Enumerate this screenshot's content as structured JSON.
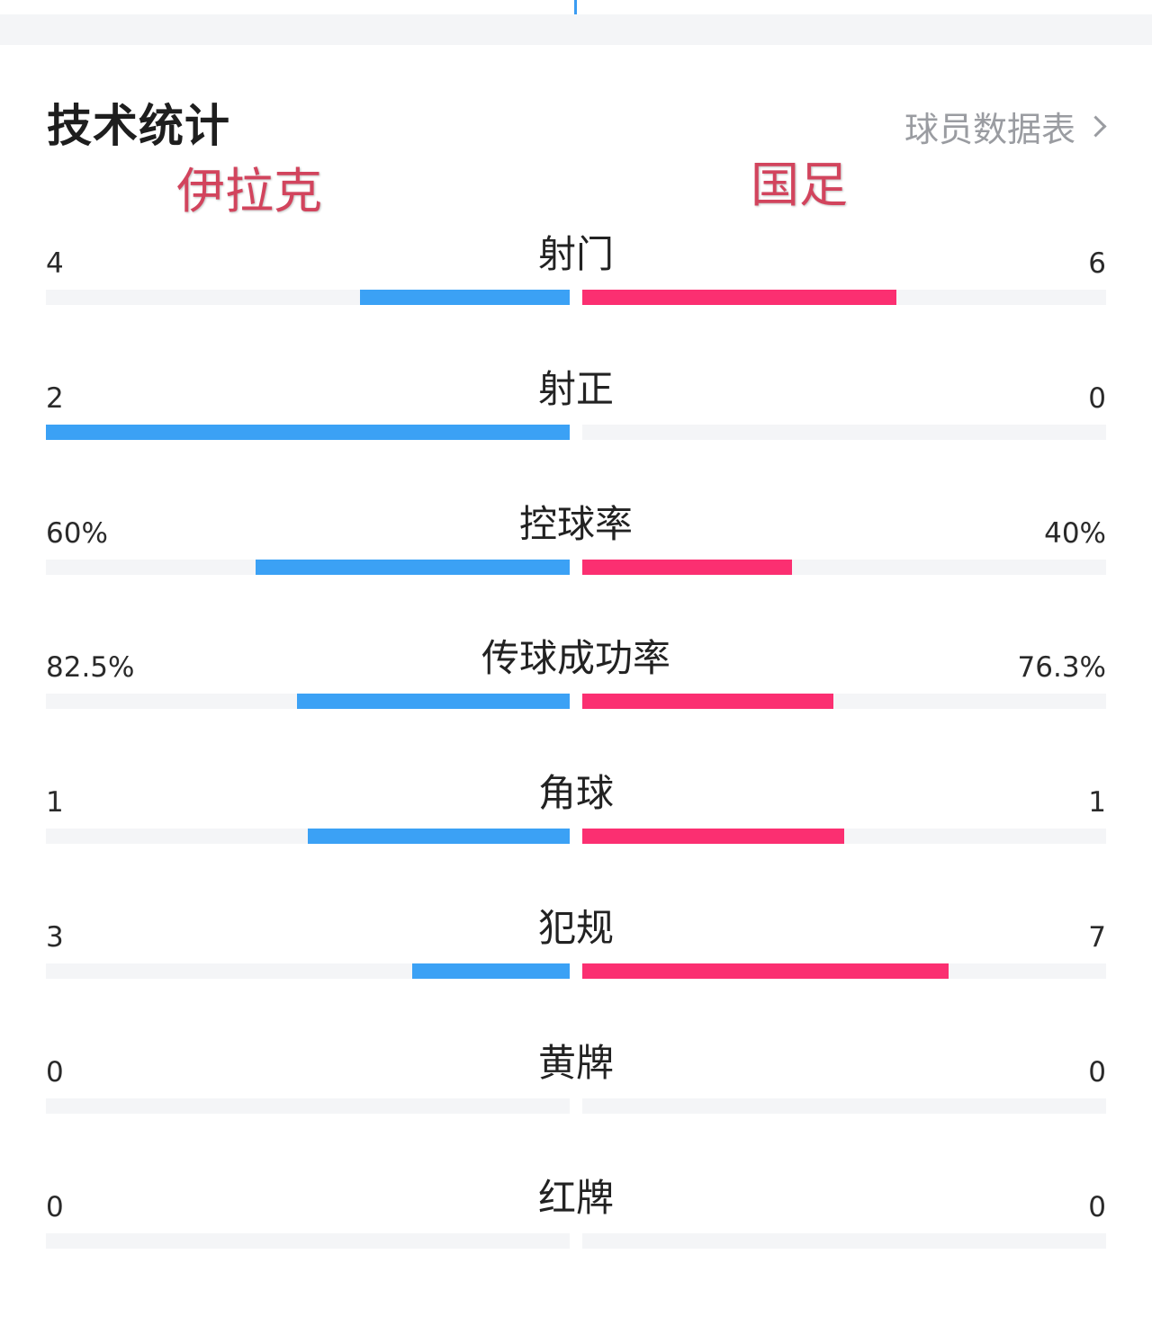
{
  "header": {
    "title": "技术统计",
    "player_link": "球员数据表"
  },
  "teams": {
    "home": "伊拉克",
    "away": "国足"
  },
  "colors": {
    "home_bar": "#3ba1f5",
    "away_bar": "#fb2f71",
    "home_name": "#d2445d",
    "away_name": "#d2445d",
    "track": "#f4f5f7"
  },
  "stats": [
    {
      "label": "射门",
      "home": "4",
      "away": "6",
      "home_share": 0.4,
      "away_share": 0.6
    },
    {
      "label": "射正",
      "home": "2",
      "away": "0",
      "home_share": 1.0,
      "away_share": 0.0
    },
    {
      "label": "控球率",
      "home": "60%",
      "away": "40%",
      "home_share": 0.6,
      "away_share": 0.4
    },
    {
      "label": "传球成功率",
      "home": "82.5%",
      "away": "76.3%",
      "home_share": 0.52,
      "away_share": 0.48
    },
    {
      "label": "角球",
      "home": "1",
      "away": "1",
      "home_share": 0.5,
      "away_share": 0.5
    },
    {
      "label": "犯规",
      "home": "3",
      "away": "7",
      "home_share": 0.3,
      "away_share": 0.7
    },
    {
      "label": "黄牌",
      "home": "0",
      "away": "0",
      "home_share": 0.0,
      "away_share": 0.0
    },
    {
      "label": "红牌",
      "home": "0",
      "away": "0",
      "home_share": 0.0,
      "away_share": 0.0
    }
  ]
}
